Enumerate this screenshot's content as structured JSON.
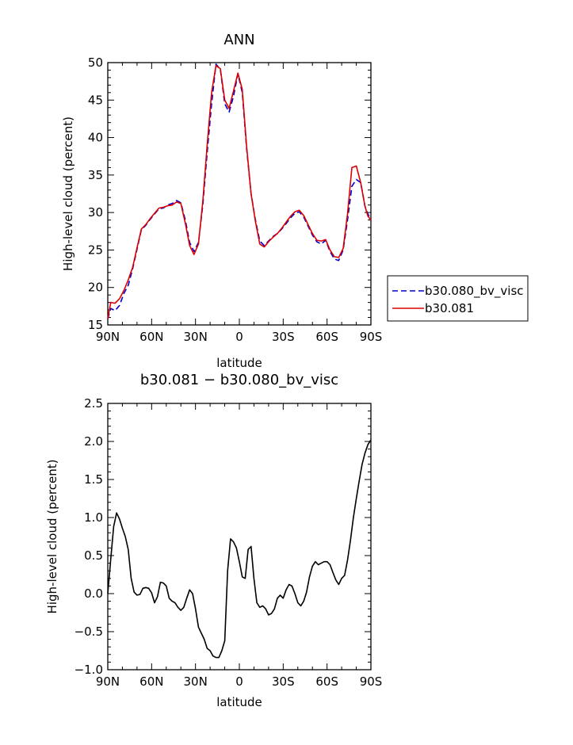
{
  "chart_data": [
    {
      "type": "line",
      "title": "ANN",
      "xlabel": "latitude",
      "ylabel": "High-level cloud (percent)",
      "xlim": [
        90,
        -90
      ],
      "ylim": [
        15,
        50
      ],
      "x_ticks": [
        {
          "value": 90,
          "label": "90N"
        },
        {
          "value": 60,
          "label": "60N"
        },
        {
          "value": 30,
          "label": "30N"
        },
        {
          "value": 0,
          "label": "0"
        },
        {
          "value": -30,
          "label": "30S"
        },
        {
          "value": -60,
          "label": "60S"
        },
        {
          "value": -90,
          "label": "90S"
        }
      ],
      "y_ticks": [
        {
          "value": 15,
          "label": "15"
        },
        {
          "value": 20,
          "label": "20"
        },
        {
          "value": 25,
          "label": "25"
        },
        {
          "value": 30,
          "label": "30"
        },
        {
          "value": 35,
          "label": "35"
        },
        {
          "value": 40,
          "label": "40"
        },
        {
          "value": 45,
          "label": "45"
        },
        {
          "value": 50,
          "label": "50"
        }
      ],
      "grid": false,
      "legend_position": "right",
      "series": [
        {
          "name": "b30.080_bv_visc",
          "color": "#0000cc",
          "dash": "dashed",
          "x": [
            90,
            88,
            85,
            82,
            79,
            76,
            73,
            70,
            67,
            64,
            61,
            58,
            55,
            52,
            49,
            46,
            43,
            40,
            37,
            34,
            31,
            28,
            25,
            22,
            19,
            16,
            13,
            10,
            7,
            4,
            1,
            -2,
            -5,
            -8,
            -11,
            -14,
            -17,
            -20,
            -23,
            -26,
            -29,
            -32,
            -35,
            -38,
            -41,
            -44,
            -47,
            -50,
            -53,
            -56,
            -59,
            -62,
            -65,
            -68,
            -71,
            -74,
            -77,
            -80,
            -83,
            -86,
            -88,
            -90
          ],
          "y": [
            15.8,
            17.2,
            16.9,
            17.6,
            19.2,
            20.3,
            22.5,
            25.1,
            27.7,
            28.3,
            29.1,
            29.8,
            30.5,
            30.6,
            31.0,
            31.2,
            31.6,
            31.3,
            29.0,
            26.0,
            24.8,
            26.0,
            31.0,
            38.0,
            44.5,
            49.8,
            49.1,
            44.5,
            43.4,
            45.5,
            48.5,
            46.0,
            38.5,
            32.5,
            29.0,
            26.2,
            25.6,
            26.2,
            26.8,
            27.2,
            27.8,
            28.5,
            29.3,
            29.9,
            30.1,
            29.4,
            28.2,
            27.0,
            26.1,
            25.8,
            26.3,
            24.8,
            23.8,
            23.6,
            25.0,
            29.0,
            33.5,
            34.4,
            34.0,
            30.8,
            29.8,
            29.0
          ]
        },
        {
          "name": "b30.081",
          "color": "#dd0000",
          "dash": "solid",
          "x": [
            90,
            88,
            85,
            82,
            79,
            76,
            73,
            70,
            67,
            64,
            61,
            58,
            55,
            52,
            49,
            46,
            43,
            40,
            37,
            34,
            31,
            28,
            25,
            22,
            19,
            16,
            13,
            10,
            7,
            4,
            1,
            -2,
            -5,
            -8,
            -11,
            -14,
            -17,
            -20,
            -23,
            -26,
            -29,
            -32,
            -35,
            -38,
            -41,
            -44,
            -47,
            -50,
            -53,
            -56,
            -59,
            -62,
            -65,
            -68,
            -71,
            -74,
            -77,
            -80,
            -83,
            -86,
            -88,
            -90
          ],
          "y": [
            15.8,
            18.0,
            17.9,
            18.5,
            19.6,
            21.0,
            22.7,
            25.3,
            27.8,
            28.4,
            29.2,
            29.9,
            30.6,
            30.7,
            30.9,
            31.0,
            31.4,
            31.2,
            28.6,
            25.6,
            24.4,
            25.8,
            31.5,
            39.0,
            46.0,
            49.6,
            49.2,
            45.0,
            43.9,
            46.2,
            48.6,
            46.4,
            38.8,
            32.5,
            28.8,
            25.8,
            25.4,
            26.1,
            26.7,
            27.2,
            27.9,
            28.7,
            29.5,
            30.1,
            30.3,
            29.6,
            28.4,
            27.2,
            26.3,
            26.2,
            26.4,
            25.0,
            24.1,
            24.0,
            25.2,
            29.8,
            36.0,
            36.2,
            34.0,
            30.8,
            29.5,
            29.0
          ]
        }
      ]
    },
    {
      "type": "line",
      "title": "b30.081 − b30.080_bv_visc",
      "xlabel": "latitude",
      "ylabel": "High-level cloud (percent)",
      "xlim": [
        90,
        -90
      ],
      "ylim": [
        -1.0,
        2.5
      ],
      "x_ticks": [
        {
          "value": 90,
          "label": "90N"
        },
        {
          "value": 60,
          "label": "60N"
        },
        {
          "value": 30,
          "label": "30N"
        },
        {
          "value": 0,
          "label": "0"
        },
        {
          "value": -30,
          "label": "30S"
        },
        {
          "value": -60,
          "label": "60S"
        },
        {
          "value": -90,
          "label": "90S"
        }
      ],
      "y_ticks": [
        {
          "value": -1.0,
          "label": "−1.0"
        },
        {
          "value": -0.5,
          "label": "−0.5"
        },
        {
          "value": 0.0,
          "label": "0.0"
        },
        {
          "value": 0.5,
          "label": "0.5"
        },
        {
          "value": 1.0,
          "label": "1.0"
        },
        {
          "value": 1.5,
          "label": "1.5"
        },
        {
          "value": 2.0,
          "label": "2.0"
        },
        {
          "value": 2.5,
          "label": "2.5"
        }
      ],
      "grid": false,
      "series": [
        {
          "color": "#000000",
          "dash": "solid",
          "x": [
            90,
            88,
            86,
            84,
            82,
            80,
            78,
            76,
            74,
            72,
            70,
            68,
            66,
            64,
            62,
            60,
            58,
            56,
            54,
            52,
            50,
            48,
            46,
            44,
            42,
            40,
            38,
            36,
            34,
            32,
            30,
            28,
            26,
            24,
            22,
            20,
            18,
            16,
            14,
            12,
            10,
            8,
            6,
            4,
            2,
            0,
            -2,
            -4,
            -6,
            -8,
            -10,
            -12,
            -14,
            -16,
            -18,
            -20,
            -22,
            -24,
            -26,
            -28,
            -30,
            -32,
            -34,
            -36,
            -38,
            -40,
            -42,
            -44,
            -46,
            -48,
            -50,
            -52,
            -54,
            -56,
            -58,
            -60,
            -62,
            -64,
            -66,
            -68,
            -70,
            -72,
            -74,
            -76,
            -78,
            -80,
            -82,
            -84,
            -86,
            -88,
            -90
          ],
          "y": [
            0.0,
            0.45,
            0.88,
            1.06,
            0.98,
            0.86,
            0.75,
            0.58,
            0.2,
            0.02,
            -0.02,
            -0.01,
            0.07,
            0.08,
            0.07,
            0.01,
            -0.12,
            -0.04,
            0.15,
            0.14,
            0.1,
            -0.06,
            -0.1,
            -0.12,
            -0.18,
            -0.22,
            -0.18,
            -0.06,
            0.05,
            0.0,
            -0.2,
            -0.44,
            -0.52,
            -0.6,
            -0.72,
            -0.75,
            -0.82,
            -0.84,
            -0.84,
            -0.75,
            -0.62,
            0.3,
            0.72,
            0.68,
            0.6,
            0.42,
            0.22,
            0.2,
            0.58,
            0.62,
            0.2,
            -0.12,
            -0.18,
            -0.16,
            -0.2,
            -0.28,
            -0.26,
            -0.2,
            -0.06,
            -0.02,
            -0.06,
            0.05,
            0.12,
            0.1,
            0.0,
            -0.12,
            -0.16,
            -0.1,
            0.02,
            0.22,
            0.36,
            0.42,
            0.38,
            0.4,
            0.42,
            0.42,
            0.38,
            0.28,
            0.18,
            0.12,
            0.2,
            0.24,
            0.44,
            0.7,
            1.0,
            1.25,
            1.48,
            1.7,
            1.85,
            1.96,
            2.02
          ]
        }
      ]
    }
  ]
}
